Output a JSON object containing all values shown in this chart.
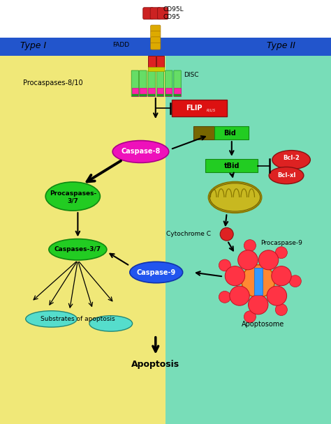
{
  "fig_width": 4.74,
  "fig_height": 6.08,
  "dpi": 100,
  "bg_white": "#ffffff",
  "bg_yellow": "#f0e878",
  "bg_green": "#78ddb8",
  "membrane_blue": "#2255cc",
  "xlim": [
    0,
    10
  ],
  "ylim": [
    0,
    13
  ]
}
